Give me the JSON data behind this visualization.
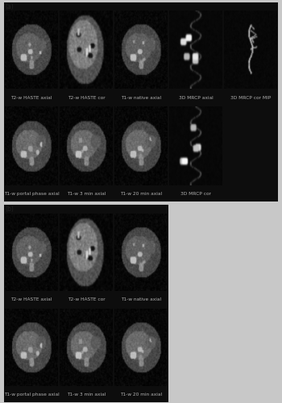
{
  "outer_bg": "#c8c8c8",
  "panel_bg": "#0d0d0d",
  "panel_a_label": "(a)",
  "panel_b_label": "(b)",
  "section_a": {
    "row1_labels": [
      "T2-w HASTE axial",
      "T2-w HASTE cor",
      "T1-w native axial",
      "3D MRCP axial",
      "3D MRCP cor MIP"
    ],
    "row2_labels": [
      "T1-w portal phase axial",
      "T1-w 3 min axial",
      "T1-w 20 min axial",
      "3D MRCP cor",
      ""
    ]
  },
  "section_b": {
    "row1_labels": [
      "T2-w HASTE axial",
      "T2-w HASTE cor",
      "T1-w native axial"
    ],
    "row2_labels": [
      "T1-w portal phase axial",
      "T1-w 3 min axial",
      "T1-w 20 min axial"
    ]
  },
  "label_color": "#b0b0b0",
  "label_fontsize": 4.2,
  "panel_label_fontsize": 5.5,
  "panel_label_color": "#222222"
}
